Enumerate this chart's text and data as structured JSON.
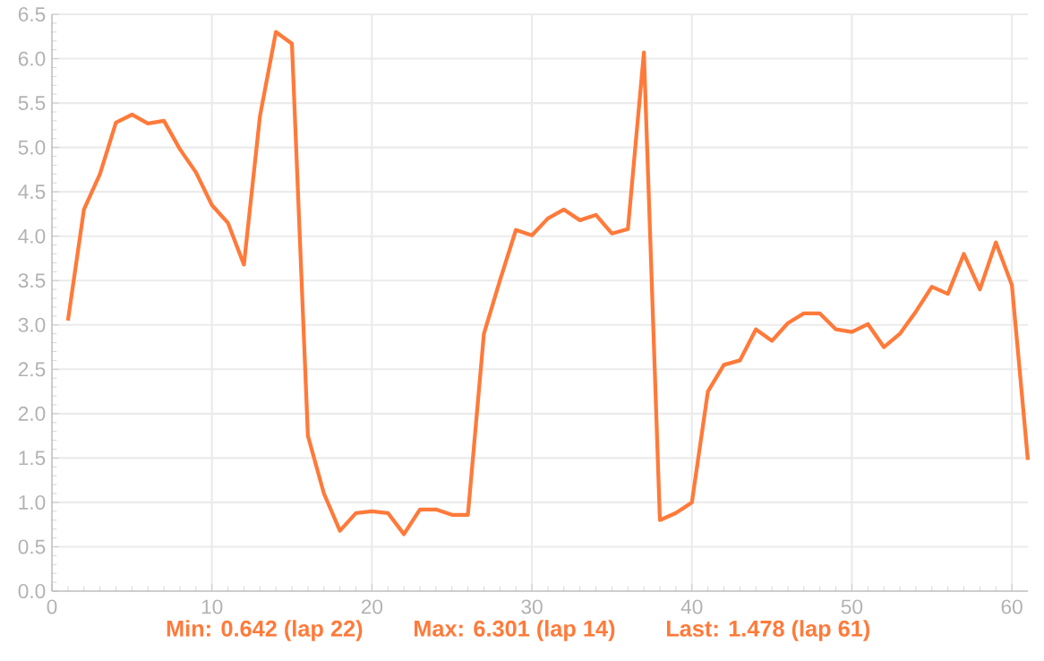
{
  "chart_data": {
    "type": "line",
    "x": [
      1,
      2,
      3,
      4,
      5,
      6,
      7,
      8,
      9,
      10,
      11,
      12,
      13,
      14,
      15,
      16,
      17,
      18,
      19,
      20,
      21,
      22,
      23,
      24,
      25,
      26,
      27,
      28,
      29,
      30,
      31,
      32,
      33,
      34,
      35,
      36,
      37,
      38,
      39,
      40,
      41,
      42,
      43,
      44,
      45,
      46,
      47,
      48,
      49,
      50,
      51,
      52,
      53,
      54,
      55,
      56,
      57,
      58,
      59,
      60,
      61
    ],
    "series": [
      {
        "color": "#ff7a3a",
        "values": [
          3.05,
          4.3,
          4.7,
          5.28,
          5.37,
          5.27,
          5.3,
          4.98,
          4.72,
          4.35,
          4.15,
          3.68,
          5.35,
          6.301,
          6.17,
          1.75,
          1.1,
          0.68,
          0.88,
          0.9,
          0.88,
          0.642,
          0.92,
          0.92,
          0.86,
          0.86,
          2.9,
          3.5,
          4.07,
          4.01,
          4.2,
          4.3,
          4.18,
          4.24,
          4.03,
          4.08,
          6.07,
          0.8,
          0.88,
          1.0,
          2.25,
          2.55,
          2.6,
          2.95,
          2.82,
          3.02,
          3.13,
          3.13,
          2.95,
          2.92,
          3.01,
          2.75,
          2.9,
          3.15,
          3.43,
          3.35,
          3.8,
          3.4,
          3.93,
          3.45,
          1.478
        ]
      }
    ],
    "xlim": [
      0,
      61
    ],
    "xticks": [
      0,
      10,
      20,
      30,
      40,
      50,
      60
    ],
    "ylim": [
      0,
      6.5
    ],
    "yticks": [
      {
        "value": 0,
        "label": "0.0"
      },
      {
        "value": 0.5,
        "label": "0.5"
      },
      {
        "value": 1,
        "label": "1.0"
      },
      {
        "value": 1.5,
        "label": "1.5"
      },
      {
        "value": 2,
        "label": "2.0"
      },
      {
        "value": 2.5,
        "label": "2.5"
      },
      {
        "value": 3,
        "label": "3.0"
      },
      {
        "value": 3.5,
        "label": "3.5"
      },
      {
        "value": 4,
        "label": "4.0"
      },
      {
        "value": 4.5,
        "label": "4.5"
      },
      {
        "value": 5,
        "label": "5.0"
      },
      {
        "value": 5.5,
        "label": "5.5"
      },
      {
        "value": 6,
        "label": "6.0"
      },
      {
        "value": 6.5,
        "label": "6.5"
      }
    ],
    "grid": true,
    "marker": "none",
    "line_style": "solid",
    "annotations": [
      "Min: 0.642 (lap 22)",
      "Max: 6.301 (lap 14)",
      "Last: 1.478 (lap 61)"
    ]
  }
}
